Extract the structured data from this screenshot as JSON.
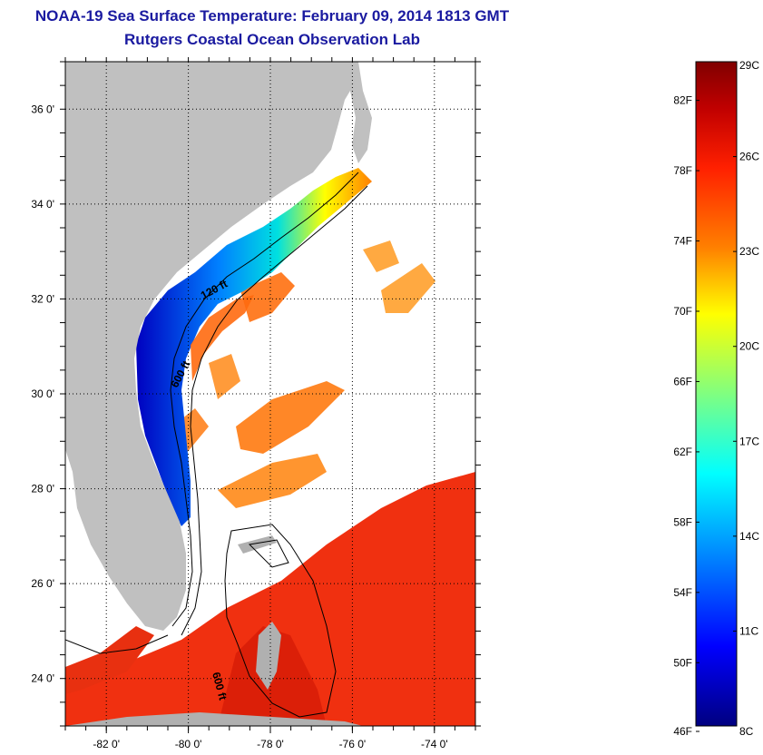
{
  "title": "NOAA-19 Sea Surface Temperature:  February 09, 2014 1813 GMT",
  "subtitle": "Rutgers Coastal Ocean Observation Lab",
  "map": {
    "lon_range": [
      -83.0,
      -73.0
    ],
    "lat_range": [
      23.0,
      37.0
    ],
    "lon_ticks": [
      {
        "value": -82,
        "label": "-82 0'"
      },
      {
        "value": -80,
        "label": "-80 0'"
      },
      {
        "value": -78,
        "label": "-78 0'"
      },
      {
        "value": -76,
        "label": "-76 0'"
      },
      {
        "value": -74,
        "label": "-74 0'"
      }
    ],
    "lat_ticks": [
      {
        "value": 24,
        "label": "24 0'"
      },
      {
        "value": 26,
        "label": "26 0'"
      },
      {
        "value": 28,
        "label": "28 0'"
      },
      {
        "value": 30,
        "label": "30 0'"
      },
      {
        "value": 32,
        "label": "32 0'"
      },
      {
        "value": 34,
        "label": "34 0'"
      },
      {
        "value": 36,
        "label": "36 0'"
      }
    ],
    "grid": true,
    "contour_labels": [
      "120 ft",
      "600 ft",
      "600 ft"
    ],
    "land_color": "#c0c0c0",
    "cloud_color": "#ffffff"
  },
  "colorbar": {
    "fahrenheit": [
      {
        "value": 82,
        "label": "82F"
      },
      {
        "value": 78,
        "label": "78F"
      },
      {
        "value": 74,
        "label": "74F"
      },
      {
        "value": 70,
        "label": "70F"
      },
      {
        "value": 66,
        "label": "66F"
      },
      {
        "value": 62,
        "label": "62F"
      },
      {
        "value": 58,
        "label": "58F"
      },
      {
        "value": 54,
        "label": "54F"
      },
      {
        "value": 50,
        "label": "50F"
      },
      {
        "value": 46,
        "label": "46F"
      }
    ],
    "celsius": [
      {
        "value": 29,
        "label": "29C"
      },
      {
        "value": 26,
        "label": "26C"
      },
      {
        "value": 23,
        "label": "23C"
      },
      {
        "value": 20,
        "label": "20C"
      },
      {
        "value": 17,
        "label": "17C"
      },
      {
        "value": 14,
        "label": "14C"
      },
      {
        "value": 11,
        "label": "11C"
      },
      {
        "value": 8,
        "label": "8C"
      }
    ],
    "colors": [
      "#000080",
      "#0000ff",
      "#0080ff",
      "#00ffff",
      "#80ff80",
      "#ffff00",
      "#ff8000",
      "#ff2000",
      "#c00000",
      "#800000"
    ]
  }
}
